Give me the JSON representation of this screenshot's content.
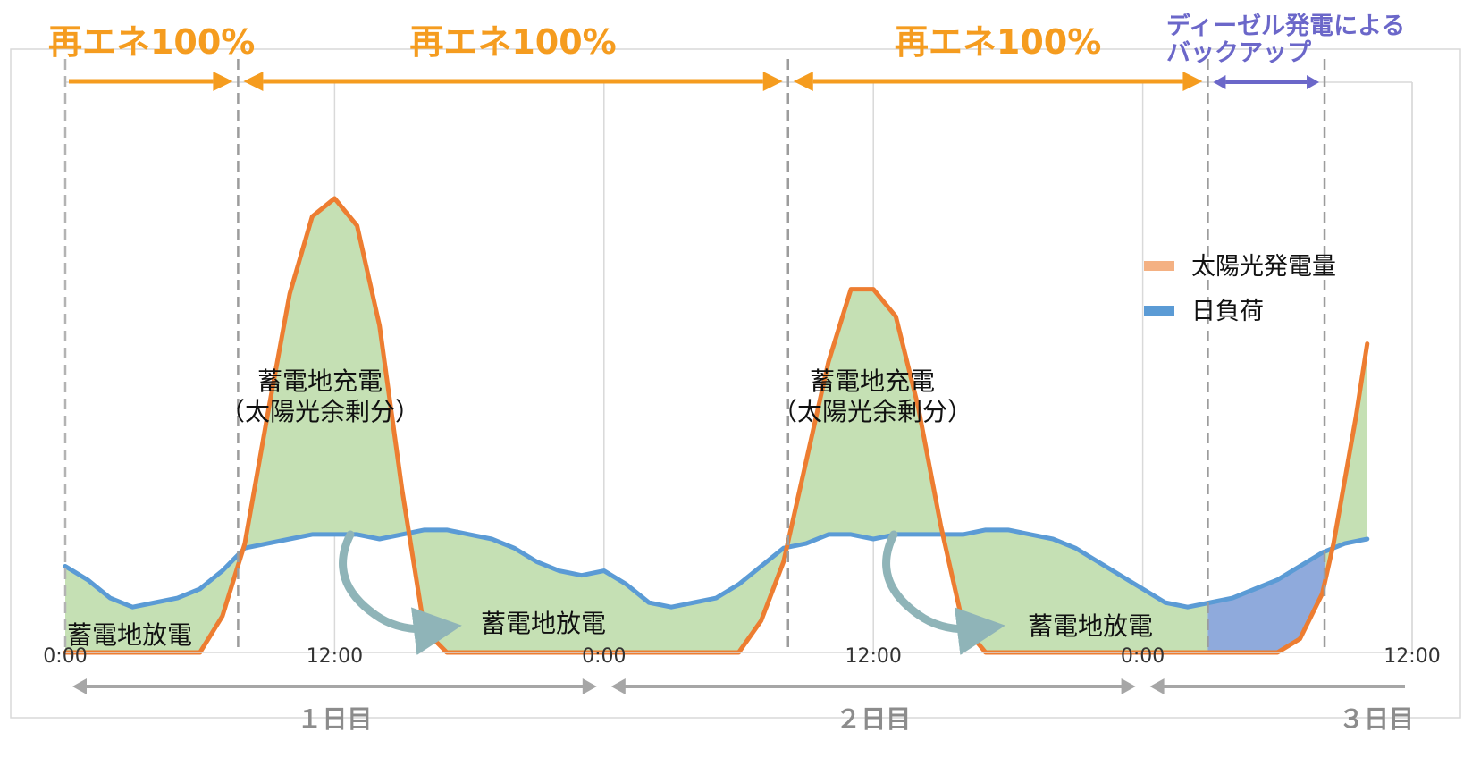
{
  "chart_data": {
    "type": "area",
    "title": "",
    "xlabel": "",
    "ylabel": "",
    "x_unit": "hours from start",
    "x_ticks": [
      {
        "hour": 0,
        "label": "0:00"
      },
      {
        "hour": 12,
        "label": "12:00"
      },
      {
        "hour": 24,
        "label": "0:00"
      },
      {
        "hour": 36,
        "label": "12:00"
      },
      {
        "hour": 48,
        "label": "0:00"
      },
      {
        "hour": 60,
        "label": "12:00"
      }
    ],
    "xlim": [
      0,
      60
    ],
    "ylim": [
      0,
      1
    ],
    "y_axis_labels_shown": false,
    "grid": "vertical",
    "legend": {
      "position": "right",
      "entries": [
        {
          "label": "太陽光発電量",
          "color": "#f4b183"
        },
        {
          "label": "日負荷",
          "color": "#5b9bd5"
        }
      ]
    },
    "series": [
      {
        "name": "太陽光発電量",
        "color": "#ed7d31",
        "x": [
          0,
          6,
          7,
          8,
          9,
          10,
          11,
          12,
          13,
          14,
          15,
          16,
          17,
          18,
          24,
          30,
          31,
          32,
          33,
          34,
          35,
          36,
          37,
          38,
          39,
          40,
          41,
          42,
          48,
          54,
          55,
          56,
          56.5,
          57,
          57.5,
          58
        ],
        "values": [
          0,
          0,
          0.08,
          0.24,
          0.52,
          0.79,
          0.96,
          1.0,
          0.94,
          0.72,
          0.36,
          0.05,
          0,
          0,
          0,
          0,
          0.07,
          0.2,
          0.42,
          0.64,
          0.8,
          0.8,
          0.74,
          0.54,
          0.28,
          0.06,
          0,
          0,
          0,
          0,
          0.03,
          0.13,
          0.24,
          0.38,
          0.52,
          0.68
        ]
      },
      {
        "name": "日負荷",
        "color": "#5b9bd5",
        "x": [
          0,
          1,
          2,
          3,
          4,
          5,
          6,
          7,
          8,
          9,
          10,
          11,
          12,
          13,
          14,
          15,
          16,
          17,
          18,
          19,
          20,
          21,
          22,
          23,
          24,
          25,
          26,
          27,
          28,
          29,
          30,
          31,
          32,
          33,
          34,
          35,
          36,
          37,
          38,
          39,
          40,
          41,
          42,
          43,
          44,
          45,
          46,
          47,
          48,
          49,
          50,
          51,
          52,
          53,
          54,
          55,
          56,
          57,
          58
        ],
        "values": [
          0.19,
          0.16,
          0.12,
          0.1,
          0.11,
          0.12,
          0.14,
          0.18,
          0.23,
          0.24,
          0.25,
          0.26,
          0.26,
          0.26,
          0.25,
          0.26,
          0.27,
          0.27,
          0.26,
          0.25,
          0.23,
          0.2,
          0.18,
          0.17,
          0.18,
          0.15,
          0.11,
          0.1,
          0.11,
          0.12,
          0.15,
          0.19,
          0.23,
          0.24,
          0.26,
          0.26,
          0.25,
          0.26,
          0.26,
          0.26,
          0.26,
          0.27,
          0.27,
          0.26,
          0.25,
          0.23,
          0.2,
          0.17,
          0.14,
          0.11,
          0.1,
          0.11,
          0.12,
          0.14,
          0.16,
          0.19,
          0.22,
          0.24,
          0.25
        ]
      }
    ],
    "regions": [
      {
        "label": "再エネ100%",
        "x_start": 0,
        "x_end": 7.7,
        "kind": "renewable"
      },
      {
        "label": "再エネ100%",
        "x_start": 7.7,
        "x_end": 32.2,
        "kind": "renewable"
      },
      {
        "label": "再エネ100%",
        "x_start": 32.2,
        "x_end": 50.9,
        "kind": "renewable"
      },
      {
        "label": "ディーゼル発電によるバックアップ",
        "x_start": 50.9,
        "x_end": 56.1,
        "kind": "diesel"
      }
    ],
    "annotations": {
      "charge_1": {
        "line1": "蓄電地充電",
        "line2": "（太陽光余剰分）"
      },
      "charge_2": {
        "line1": "蓄電地充電",
        "line2": "（太陽光余剰分）"
      },
      "discharge_0": "蓄電地放電",
      "discharge_1": "蓄電地放電",
      "discharge_2": "蓄電地放電"
    },
    "days": [
      {
        "label": "１日目",
        "x_start": 0,
        "x_end": 24
      },
      {
        "label": "２日目",
        "x_start": 24,
        "x_end": 48
      },
      {
        "label": "３日目",
        "x_start": 48,
        "x_end": 60
      }
    ],
    "colors": {
      "solar_line": "#ed7d31",
      "solar_legend": "#f4b183",
      "load_line": "#5b9bd5",
      "surplus_fill": "#c5e0b4",
      "diesel_fill": "#8faadc",
      "renewable_text": "#f59c1f",
      "diesel_text": "#6b67c9",
      "day_arrow": "#a6a6a6",
      "curved_arrow": "#8fb4b8"
    }
  }
}
